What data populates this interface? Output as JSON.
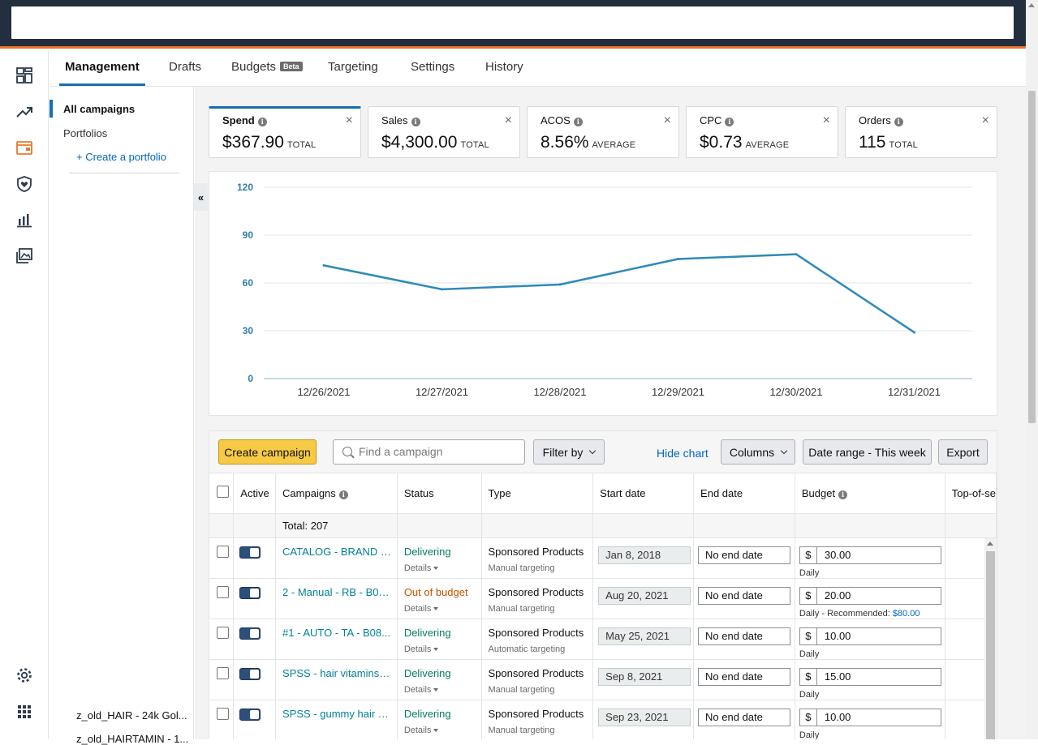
{
  "tabs": [
    {
      "label": "Management"
    },
    {
      "label": "Drafts"
    },
    {
      "label": "Budgets",
      "badge": "Beta"
    },
    {
      "label": "Targeting"
    },
    {
      "label": "Settings"
    },
    {
      "label": "History"
    }
  ],
  "left_panel": {
    "all_campaigns": "All campaigns",
    "portfolios": "Portfolios",
    "create_portfolio": "+ Create a portfolio",
    "bottom_items": [
      "z_old_HAIR - 24k Gol...",
      "z_old_HAIRTAMIN - 1..."
    ]
  },
  "rail_icons": [
    "dashboard-icon",
    "trending-up-icon",
    "wallet-icon",
    "shield-heart-icon",
    "bar-chart-icon",
    "image-gallery-icon",
    "settings-gear-icon",
    "apps-grid-icon"
  ],
  "metrics": [
    {
      "label": "Spend",
      "value": "$367.90",
      "sub": "TOTAL"
    },
    {
      "label": "Sales",
      "value": "$4,300.00",
      "sub": "TOTAL"
    },
    {
      "label": "ACOS",
      "value": "8.56%",
      "sub": "AVERAGE"
    },
    {
      "label": "CPC",
      "value": "$0.73",
      "sub": "AVERAGE"
    },
    {
      "label": "Orders",
      "value": "115",
      "sub": "TOTAL"
    }
  ],
  "chart_data": {
    "type": "line",
    "x": [
      "12/26/2021",
      "12/27/2021",
      "12/28/2021",
      "12/29/2021",
      "12/30/2021",
      "12/31/2021"
    ],
    "series": [
      {
        "values": [
          71,
          56,
          59,
          75,
          78,
          29
        ]
      }
    ],
    "yticks": [
      0,
      30,
      60,
      90,
      120
    ],
    "ylim": [
      0,
      120
    ],
    "grid": true,
    "color": "#2e8ab8"
  },
  "toolbar": {
    "create_campaign": "Create campaign",
    "search_placeholder": "Find a campaign",
    "filter_by": "Filter by",
    "hide_chart": "Hide chart",
    "columns": "Columns",
    "date_range": "Date range - This week",
    "export": "Export"
  },
  "table": {
    "headers": [
      "Active",
      "Campaigns",
      "Status",
      "Type",
      "Start date",
      "End date",
      "Budget",
      "Top-of-se"
    ],
    "total_label": "Total: 207",
    "details_label": "Details",
    "currency": "$",
    "rows": [
      {
        "campaign": "CATALOG - BRAND - B...",
        "status": "Delivering",
        "status_color": "green",
        "type": "Sponsored Products",
        "targeting": "Manual targeting",
        "start": "Jan 8, 2018",
        "end": "No end date",
        "budget": "30.00",
        "budget_type": "Daily",
        "recommended_label": "",
        "recommended": ""
      },
      {
        "campaign": "2 - Manual - RB - B08...",
        "status": "Out of budget",
        "status_color": "orange",
        "type": "Sponsored Products",
        "targeting": "Manual targeting",
        "start": "Aug 20, 2021",
        "end": "No end date",
        "budget": "20.00",
        "budget_type": "Daily - Recommended:",
        "recommended_label": "",
        "recommended": "$80.00"
      },
      {
        "campaign": "#1 - AUTO - TA - B08...",
        "status": "Delivering",
        "status_color": "green",
        "type": "Sponsored Products",
        "targeting": "Automatic targeting",
        "start": "May 25, 2021",
        "end": "No end date",
        "budget": "10.00",
        "budget_type": "Daily",
        "recommended_label": "",
        "recommended": ""
      },
      {
        "campaign": "SPSS - hair vitamins f...",
        "status": "Delivering",
        "status_color": "green",
        "type": "Sponsored Products",
        "targeting": "Manual targeting",
        "start": "Sep 8, 2021",
        "end": "No end date",
        "budget": "15.00",
        "budget_type": "Daily",
        "recommended_label": "",
        "recommended": ""
      },
      {
        "campaign": "SPSS - gummy hair vit...",
        "status": "Delivering",
        "status_color": "green",
        "type": "Sponsored Products",
        "targeting": "Manual targeting",
        "start": "Sep 23, 2021",
        "end": "No end date",
        "budget": "10.00",
        "budget_type": "Daily",
        "recommended_label": "",
        "recommended": ""
      }
    ]
  }
}
